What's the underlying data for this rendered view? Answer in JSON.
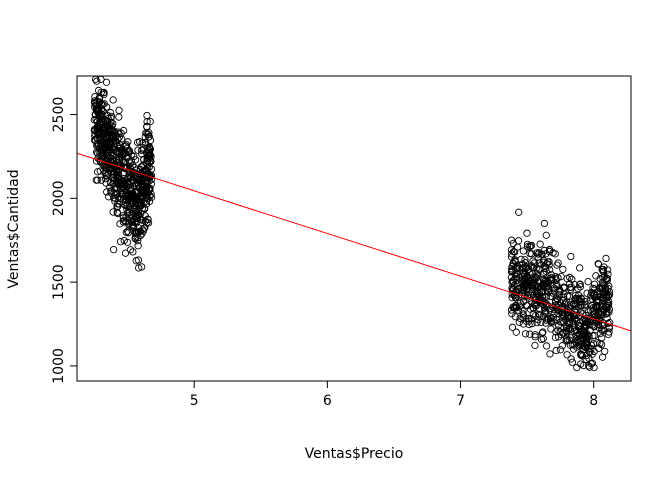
{
  "chart_data": {
    "type": "scatter",
    "title": "",
    "xlabel": "Ventas$Precio",
    "ylabel": "Ventas$Cantidad",
    "xlim": [
      4.12,
      8.28
    ],
    "ylim": [
      910,
      2730
    ],
    "x_ticks": [
      {
        "value": 5,
        "label": "5"
      },
      {
        "value": 6,
        "label": "6"
      },
      {
        "value": 7,
        "label": "7"
      },
      {
        "value": 8,
        "label": "8"
      }
    ],
    "y_ticks": [
      {
        "value": 1000,
        "label": "1000"
      },
      {
        "value": 1500,
        "label": "1500"
      },
      {
        "value": 2000,
        "label": "2000"
      },
      {
        "value": 2500,
        "label": "2500"
      }
    ],
    "grid": false,
    "point_style": "open-circle",
    "point_color": "#000000",
    "fit_line": {
      "intercept": 3319,
      "slope": -254.8,
      "color": "#ff0000"
    },
    "clusters": [
      {
        "x_range": [
          4.25,
          4.68
        ],
        "y_center": 2150,
        "y_spread": 320,
        "trend": [
          {
            "x": 4.25,
            "y": 2500
          },
          {
            "x": 4.35,
            "y": 2300
          },
          {
            "x": 4.42,
            "y": 2200
          },
          {
            "x": 4.5,
            "y": 2050
          },
          {
            "x": 4.58,
            "y": 1950
          },
          {
            "x": 4.65,
            "y": 2150
          }
        ],
        "n": 700
      },
      {
        "x_range": [
          7.38,
          8.12
        ],
        "y_center": 1400,
        "y_spread": 280,
        "trend": [
          {
            "x": 7.4,
            "y": 1500
          },
          {
            "x": 7.55,
            "y": 1450
          },
          {
            "x": 7.65,
            "y": 1500
          },
          {
            "x": 7.75,
            "y": 1350
          },
          {
            "x": 7.85,
            "y": 1300
          },
          {
            "x": 7.95,
            "y": 1200
          },
          {
            "x": 8.05,
            "y": 1350
          },
          {
            "x": 8.1,
            "y": 1400
          }
        ],
        "n": 700
      }
    ]
  }
}
